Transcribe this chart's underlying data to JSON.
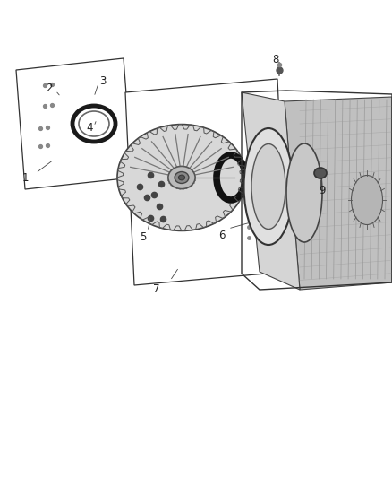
{
  "background_color": "#ffffff",
  "fig_width": 4.38,
  "fig_height": 5.33,
  "dpi": 100,
  "label_fontsize": 8.5,
  "label_color": "#222222",
  "line_color": "#333333"
}
